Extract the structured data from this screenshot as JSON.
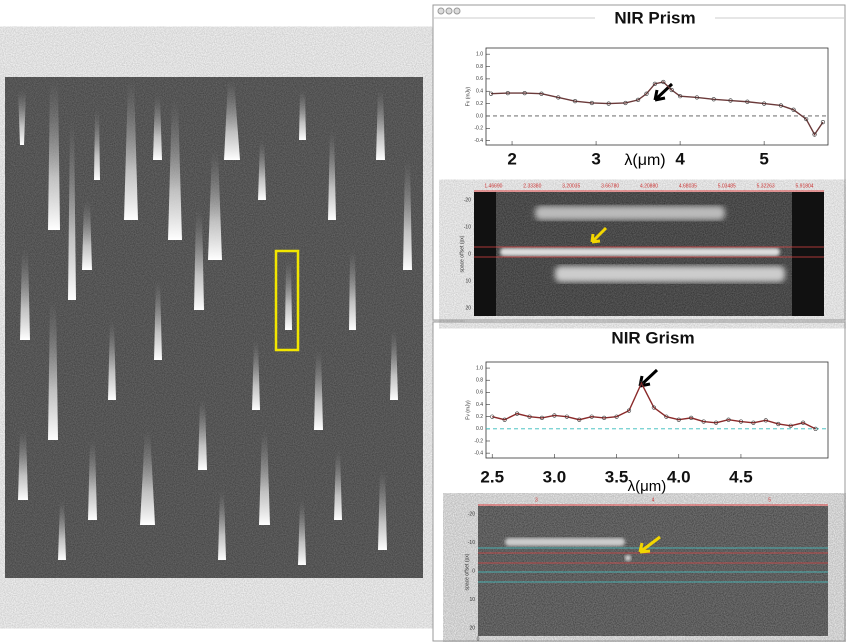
{
  "chart_data": [
    {
      "type": "line",
      "title": "NIR Prism",
      "xlabel": "λ(μm)",
      "ylabel": "Fν (mJy)",
      "x": [
        1.75,
        1.95,
        2.15,
        2.35,
        2.55,
        2.75,
        2.95,
        3.15,
        3.35,
        3.5,
        3.6,
        3.7,
        3.8,
        3.9,
        4.0,
        4.2,
        4.4,
        4.6,
        4.8,
        5.0,
        5.2,
        5.35,
        5.5,
        5.6,
        5.7
      ],
      "values": [
        0.36,
        0.37,
        0.37,
        0.36,
        0.3,
        0.24,
        0.21,
        0.2,
        0.21,
        0.26,
        0.36,
        0.52,
        0.55,
        0.42,
        0.32,
        0.3,
        0.27,
        0.25,
        0.23,
        0.2,
        0.17,
        0.1,
        -0.05,
        -0.3,
        -0.1
      ],
      "color": "#6b3a3a",
      "xlim": [
        1.69,
        5.76
      ],
      "xticks": [
        2,
        3,
        4,
        5
      ],
      "ylim": [
        -0.47,
        1.1
      ],
      "yticks": [
        {
          "value": 1,
          "label": "1.0"
        },
        0.8,
        0.6,
        0.4,
        0.2,
        {
          "value": 0,
          "label": "0.0"
        },
        -0.2,
        -0.4
      ],
      "hline": 0
    },
    {
      "type": "line",
      "title": "NIR Grism",
      "xlabel": "λ(μm)",
      "ylabel": "Fν (mJy)",
      "x": [
        2.5,
        2.6,
        2.7,
        2.8,
        2.9,
        3.0,
        3.1,
        3.2,
        3.3,
        3.4,
        3.5,
        3.6,
        3.7,
        3.8,
        3.9,
        4.0,
        4.1,
        4.2,
        4.3,
        4.4,
        4.5,
        4.6,
        4.7,
        4.8,
        4.9,
        5.0,
        5.1
      ],
      "values": [
        0.2,
        0.15,
        0.25,
        0.2,
        0.18,
        0.22,
        0.2,
        0.15,
        0.2,
        0.18,
        0.2,
        0.3,
        0.75,
        0.35,
        0.2,
        0.15,
        0.18,
        0.12,
        0.1,
        0.15,
        0.12,
        0.1,
        0.14,
        0.08,
        0.05,
        0.1,
        0.0
      ],
      "color": "#8b2a2a",
      "xlim": [
        2.45,
        5.2
      ],
      "xticks": [
        2.5,
        {
          "value": 3,
          "label": "3.0"
        },
        3.5,
        {
          "value": 4,
          "label": "4.0"
        },
        4.5
      ],
      "ylim": [
        -0.48,
        1.1
      ],
      "yticks": [
        {
          "value": 1,
          "label": "1.0"
        },
        0.8,
        0.6,
        0.4,
        0.2,
        {
          "value": 0,
          "label": "0.0"
        },
        -0.2,
        -0.4
      ],
      "hline": 0
    }
  ],
  "spectrum_images": [
    {
      "y_label": "space offset (px)",
      "top_labels": [
        "1.46690",
        "2.33380",
        "3.20035",
        "3.66780",
        "4.20880",
        "4.68035",
        "5.03485",
        "5.32263",
        "5.91804"
      ],
      "side_labels": [
        "-20",
        "-10",
        "0",
        "10",
        "20"
      ]
    },
    {
      "y_label": "space offset (px)",
      "top_labels": [
        "3",
        "4",
        "5"
      ],
      "side_labels": [
        "-20",
        "-10",
        "0",
        "10",
        "20"
      ],
      "bottom_label": "0"
    }
  ]
}
